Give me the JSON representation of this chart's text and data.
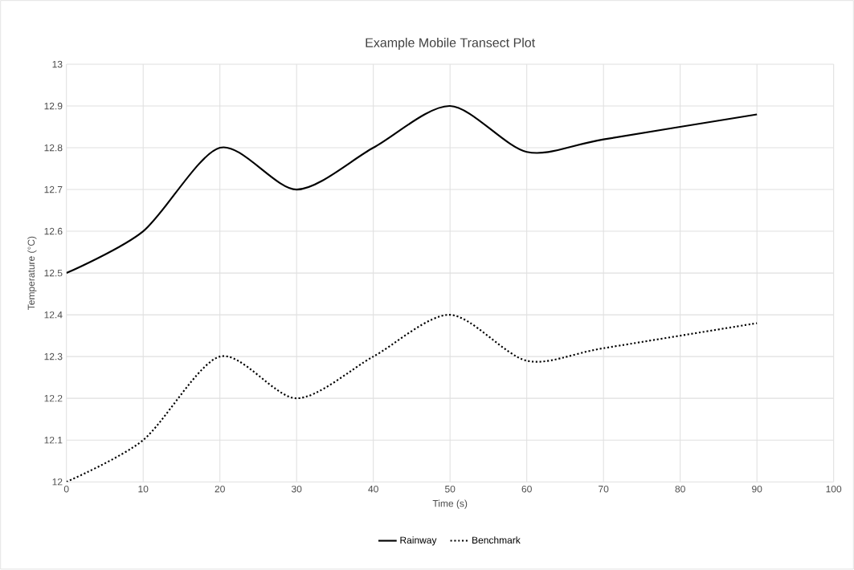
{
  "chart_data": {
    "type": "line",
    "title": "Example Mobile Transect Plot",
    "xlabel": "Time (s)",
    "ylabel": "Temperature (°C)",
    "x": [
      0,
      10,
      20,
      30,
      40,
      50,
      60,
      70,
      90
    ],
    "series": [
      {
        "name": "Rainway",
        "color": "#000000",
        "line_style": "solid",
        "values": [
          12.5,
          12.6,
          12.8,
          12.7,
          12.8,
          12.9,
          12.79,
          12.82,
          12.88
        ]
      },
      {
        "name": "Benchmark",
        "color": "#000000",
        "line_style": "dotted",
        "values": [
          12.0,
          12.1,
          12.3,
          12.2,
          12.3,
          12.4,
          12.29,
          12.32,
          12.38
        ]
      }
    ],
    "xlim": [
      0,
      100
    ],
    "xticks": [
      0,
      10,
      20,
      30,
      40,
      50,
      60,
      70,
      80,
      90,
      100
    ],
    "ylim": [
      12,
      13
    ],
    "yticks": [
      12,
      12.1,
      12.2,
      12.3,
      12.4,
      12.5,
      12.6,
      12.7,
      12.8,
      12.9,
      13
    ],
    "grid": true,
    "legend": "bottom",
    "marker": "none"
  }
}
